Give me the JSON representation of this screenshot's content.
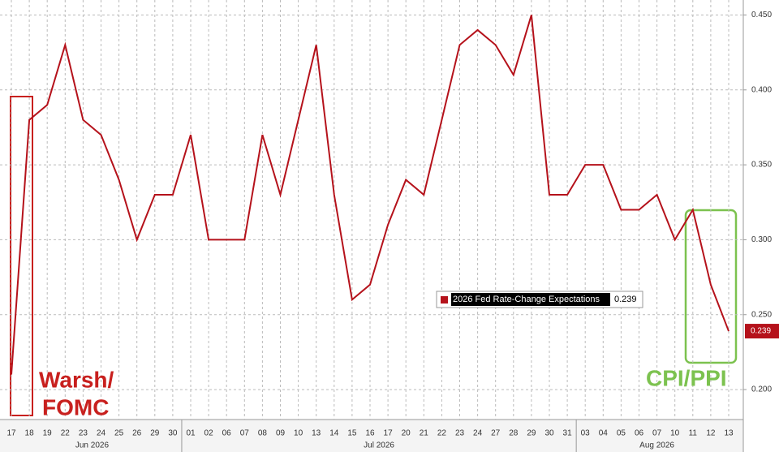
{
  "chart_data": {
    "type": "line",
    "categories": [
      "17",
      "18",
      "19",
      "22",
      "23",
      "24",
      "25",
      "26",
      "29",
      "30",
      "01",
      "02",
      "06",
      "07",
      "08",
      "09",
      "10",
      "13",
      "14",
      "15",
      "16",
      "17",
      "20",
      "21",
      "22",
      "23",
      "24",
      "27",
      "28",
      "29",
      "30",
      "31",
      "03",
      "04",
      "05",
      "06",
      "07",
      "10",
      "11",
      "12",
      "13"
    ],
    "months": [
      "Jun 2026",
      "Jul 2026",
      "Aug 2026"
    ],
    "series": [
      {
        "name": "2026 Fed Rate-Change Expectations",
        "color": "#b5121b",
        "values": [
          0.21,
          0.38,
          0.39,
          0.43,
          0.38,
          0.37,
          0.34,
          0.3,
          0.33,
          0.33,
          0.37,
          0.3,
          0.3,
          0.3,
          0.37,
          0.33,
          0.38,
          0.43,
          0.33,
          0.26,
          0.27,
          0.31,
          0.34,
          0.33,
          0.38,
          0.43,
          0.44,
          0.43,
          0.41,
          0.45,
          0.33,
          0.33,
          0.35,
          0.35,
          0.32,
          0.32,
          0.33,
          0.3,
          0.32,
          0.27,
          0.239
        ]
      }
    ],
    "ylim": [
      0.18,
      0.46
    ],
    "yticks": [
      {
        "value": 0.2,
        "label": "0.200"
      },
      {
        "value": 0.25,
        "label": "0.250"
      },
      {
        "value": 0.3,
        "label": "0.300"
      },
      {
        "value": 0.35,
        "label": "0.350"
      },
      {
        "value": 0.4,
        "label": "0.400"
      },
      {
        "value": 0.45,
        "label": "0.450"
      }
    ],
    "grid": true,
    "annotations": [
      {
        "lines": [
          "Warsh/",
          "FOMC"
        ],
        "color": "#c8201e"
      },
      {
        "lines": [
          "CPI/PPI"
        ],
        "color": "#7cc24f"
      }
    ]
  }
}
